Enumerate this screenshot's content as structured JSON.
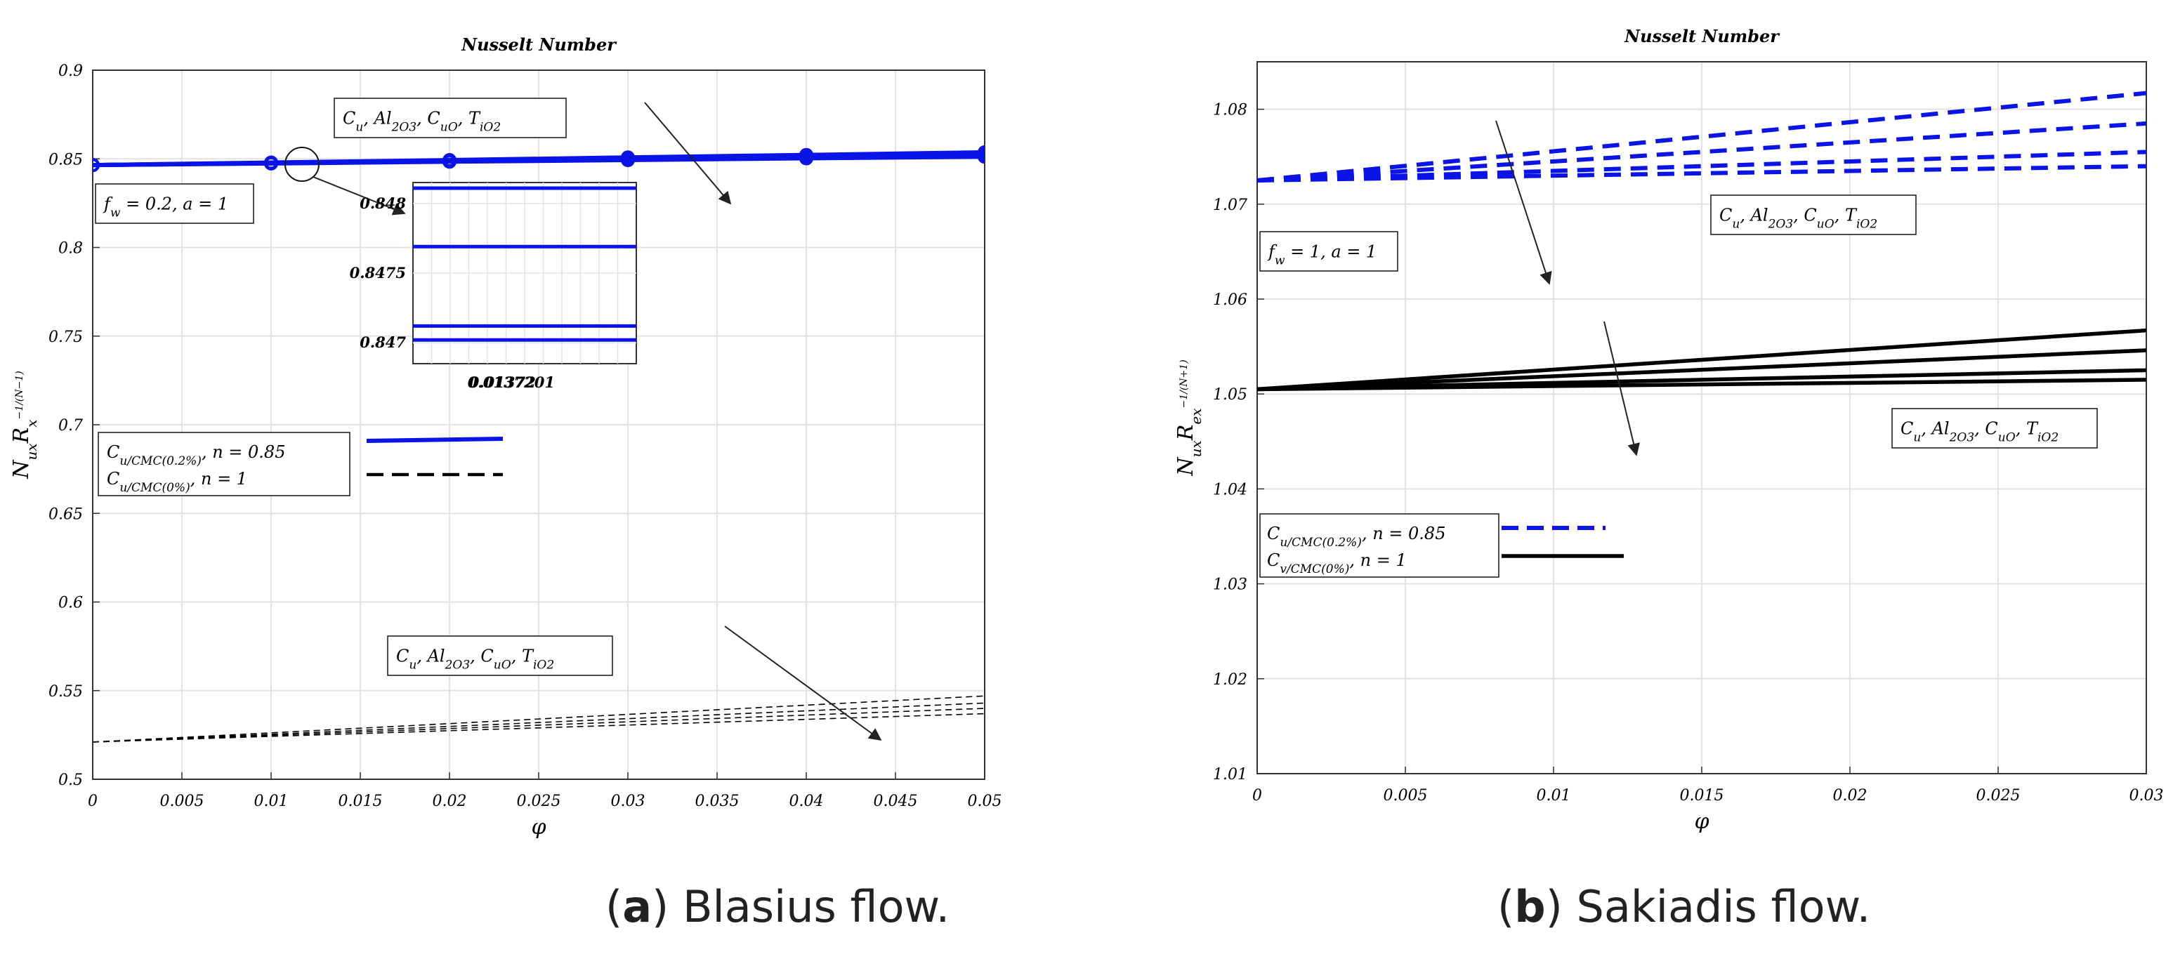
{
  "captions": [
    {
      "label": "a",
      "text": "Blasius flow."
    },
    {
      "label": "b",
      "text": "Sakiadis flow."
    }
  ],
  "colors": {
    "blue": "#0a14e6",
    "black": "#000000",
    "grid": "#e3e3e3",
    "arrow": "#222222"
  },
  "chart_data": [
    {
      "type": "line",
      "panel": "a",
      "title": "Nusselt Number",
      "xlabel": "φ",
      "ylabel_main": "N",
      "ylabel_sub": "ux",
      "ylabel_mid": "R",
      "ylabel_sup": "−1/(N−1)",
      "ylabel_sub2": "x",
      "xlim": [
        0,
        0.05
      ],
      "ylim": [
        0.5,
        0.9
      ],
      "xticks": [
        0,
        0.005,
        0.01,
        0.015,
        0.02,
        0.025,
        0.03,
        0.035,
        0.04,
        0.045,
        0.05
      ],
      "xtick_labels": [
        "0",
        "0.005",
        "0.01",
        "0.015",
        "0.02",
        "0.025",
        "0.03",
        "0.035",
        "0.04",
        "0.045",
        "0.05"
      ],
      "yticks": [
        0.5,
        0.55,
        0.6,
        0.65,
        0.7,
        0.75,
        0.8,
        0.85,
        0.9
      ],
      "ytick_labels": [
        "0.5",
        "0.55",
        "0.6",
        "0.65",
        "0.7",
        "0.75",
        "0.8",
        "0.85",
        "0.9"
      ],
      "series": [
        {
          "name": "Cu/CMC(0.2%), n=0.85 — Cu",
          "style": "solid-blue-marker",
          "x": [
            0,
            0.01,
            0.02,
            0.03,
            0.04,
            0.05
          ],
          "y": [
            0.8465,
            0.8479,
            0.8493,
            0.8508,
            0.8522,
            0.8537
          ]
        },
        {
          "name": "Cu/CMC(0.2%), n=0.85 — Al2O3",
          "style": "solid-blue-marker",
          "x": [
            0,
            0.01,
            0.02,
            0.03,
            0.04,
            0.05
          ],
          "y": [
            0.8465,
            0.8477,
            0.8489,
            0.8501,
            0.8513,
            0.8525
          ]
        },
        {
          "name": "Cu/CMC(0.2%), n=0.85 — CuO",
          "style": "solid-blue-marker",
          "x": [
            0,
            0.01,
            0.02,
            0.03,
            0.04,
            0.05
          ],
          "y": [
            0.8465,
            0.8475,
            0.8486,
            0.8497,
            0.8507,
            0.8518
          ]
        },
        {
          "name": "Cu/CMC(0.2%), n=0.85 — TiO2",
          "style": "solid-blue-marker",
          "x": [
            0,
            0.01,
            0.02,
            0.03,
            0.04,
            0.05
          ],
          "y": [
            0.8465,
            0.8474,
            0.8484,
            0.8493,
            0.8503,
            0.8512
          ]
        },
        {
          "name": "Cu/CMC(0%), n=1 — Cu",
          "style": "dashed-black-thin",
          "x": [
            0,
            0.05
          ],
          "y": [
            0.521,
            0.547
          ]
        },
        {
          "name": "Cu/CMC(0%), n=1 — Al2O3",
          "style": "dashed-black-thin",
          "x": [
            0,
            0.05
          ],
          "y": [
            0.521,
            0.543
          ]
        },
        {
          "name": "Cu/CMC(0%), n=1 — CuO",
          "style": "dashed-black-thin",
          "x": [
            0,
            0.05
          ],
          "y": [
            0.521,
            0.54
          ]
        },
        {
          "name": "Cu/CMC(0%), n=1 — TiO2",
          "style": "dashed-black-thin",
          "x": [
            0,
            0.05
          ],
          "y": [
            0.521,
            0.537
          ]
        }
      ],
      "annotations": {
        "fw_box": "f_w = 0.2, a = 1",
        "nano_box_top": "C_u, Al_2O_3, C_uO, T_iO_2",
        "nano_box_bottom": "C_u, Al_2O_3, C_uO, T_iO_2",
        "legend": [
          {
            "label": "C_u/CMC(0.2%), n = 0.85",
            "style": "solid-blue"
          },
          {
            "label": "C_u/CMC(0%), n = 1",
            "style": "dashed-black"
          }
        ]
      },
      "inset": {
        "xlim": [
          0.013719,
          0.0137215
        ],
        "ylim": [
          0.84685,
          0.84815
        ],
        "xticks": [
          0.01372,
          0.0137201
        ],
        "xtick_labels": [
          "0.01372",
          "0.0137201"
        ],
        "yticks": [
          0.847,
          0.8475,
          0.848
        ],
        "ytick_labels": [
          "0.847",
          "0.8475",
          "0.848"
        ],
        "levels": [
          0.84811,
          0.84769,
          0.84712,
          0.84702
        ]
      }
    },
    {
      "type": "line",
      "panel": "b",
      "title": "Nusselt Number",
      "xlabel": "φ",
      "ylabel_main": "N",
      "ylabel_sub": "ux",
      "ylabel_mid": "R",
      "ylabel_sup": "−1/(N+1)",
      "ylabel_sub2": "ex",
      "xlim": [
        0,
        0.03
      ],
      "ylim": [
        1.01,
        1.085
      ],
      "xticks": [
        0,
        0.005,
        0.01,
        0.015,
        0.02,
        0.025,
        0.03
      ],
      "xtick_labels": [
        "0",
        "0.005",
        "0.01",
        "0.015",
        "0.02",
        "0.025",
        "0.03"
      ],
      "yticks": [
        1.01,
        1.02,
        1.03,
        1.04,
        1.05,
        1.06,
        1.07,
        1.08
      ],
      "ytick_labels": [
        "1.01",
        "1.02",
        "1.03",
        "1.04",
        "1.05",
        "1.06",
        "1.07",
        "1.08"
      ],
      "series": [
        {
          "name": "Cu/CMC(0.2%), n=0.85 — Cu",
          "style": "dashed-blue-thick",
          "x": [
            0,
            0.03
          ],
          "y": [
            1.0725,
            1.0817
          ]
        },
        {
          "name": "Cu/CMC(0.2%), n=0.85 — Al2O3",
          "style": "dashed-blue-thick",
          "x": [
            0,
            0.03
          ],
          "y": [
            1.0725,
            1.0785
          ]
        },
        {
          "name": "Cu/CMC(0.2%), n=0.85 — CuO",
          "style": "dashed-blue-thick",
          "x": [
            0,
            0.03
          ],
          "y": [
            1.0725,
            1.0755
          ]
        },
        {
          "name": "Cu/CMC(0.2%), n=0.85 — TiO2",
          "style": "dashed-blue-thick",
          "x": [
            0,
            0.03
          ],
          "y": [
            1.0725,
            1.074
          ]
        },
        {
          "name": "Cu/CMC(0%), n=1 — Cu",
          "style": "solid-black-thick",
          "x": [
            0,
            0.03
          ],
          "y": [
            1.0505,
            1.0567
          ]
        },
        {
          "name": "Cu/CMC(0%), n=1 — Al2O3",
          "style": "solid-black-thick",
          "x": [
            0,
            0.03
          ],
          "y": [
            1.0505,
            1.0546
          ]
        },
        {
          "name": "Cu/CMC(0%), n=1 — CuO",
          "style": "solid-black-thick",
          "x": [
            0,
            0.03
          ],
          "y": [
            1.0505,
            1.0525
          ]
        },
        {
          "name": "Cu/CMC(0%), n=1 — TiO2",
          "style": "solid-black-thick",
          "x": [
            0,
            0.03
          ],
          "y": [
            1.0505,
            1.0515
          ]
        }
      ],
      "annotations": {
        "fw_box": "f_w = 1, a = 1",
        "nano_box_top": "C_u, Al_2O_3, C_uO, T_iO_2",
        "nano_box_bottom": "C_u, Al_2O_3, C_uO, T_iO_2",
        "legend": [
          {
            "label": "C_u/CMC(0.2%), n = 0.85",
            "style": "dashed-blue"
          },
          {
            "label": "C_v/CMC(0%), n = 1",
            "style": "solid-black"
          }
        ]
      }
    }
  ]
}
